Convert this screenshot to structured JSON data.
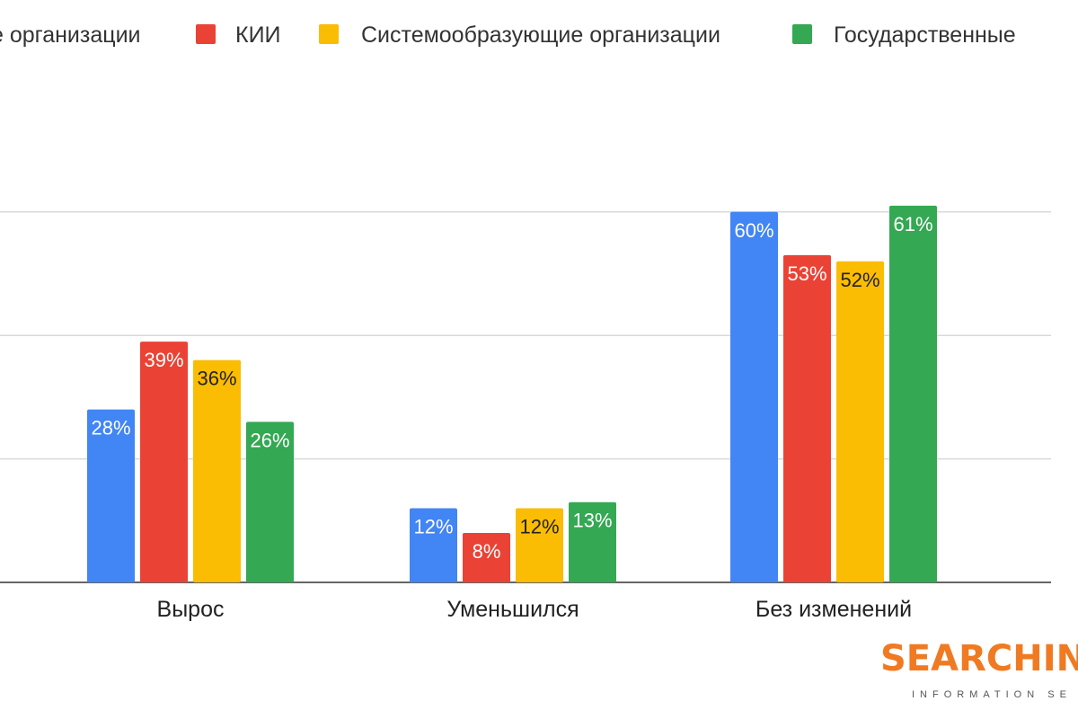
{
  "chart_data": {
    "type": "bar",
    "categories": [
      "Вырос",
      "Уменьшился",
      "Без изменений"
    ],
    "series": [
      {
        "name": "е организации",
        "color": "#4285F4",
        "label_color": "#ffffff",
        "values": [
          28,
          12,
          60
        ]
      },
      {
        "name": "КИИ",
        "color": "#EA4335",
        "label_color": "#ffffff",
        "values": [
          39,
          8,
          53
        ]
      },
      {
        "name": "Системообразующие организации",
        "color": "#FBBC04",
        "label_color": "#222222",
        "values": [
          36,
          12,
          52
        ]
      },
      {
        "name": "Государственные",
        "color": "#34A853",
        "label_color": "#ffffff",
        "values": [
          26,
          13,
          61
        ]
      }
    ],
    "value_suffix": "%",
    "ylim": [
      0,
      75
    ],
    "grid": true,
    "legend": "top",
    "title": "",
    "xlabel": "",
    "ylabel": ""
  },
  "logo": {
    "text_orange": "SEARCHIN",
    "tagline": "INFORMATION SE",
    "orange": "#F07A22",
    "dark": "#555555"
  }
}
